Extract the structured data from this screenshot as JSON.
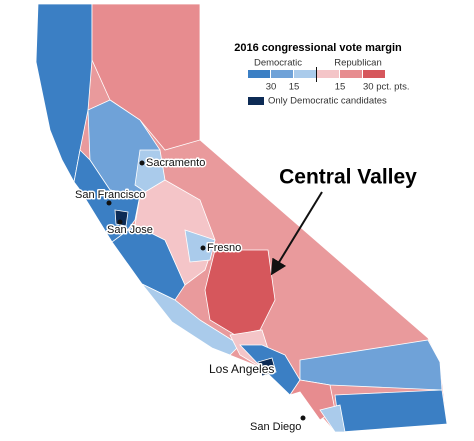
{
  "legend": {
    "title": "2016 congressional vote margin",
    "left_heading": "Democratic",
    "right_heading": "Republican",
    "swatches": [
      "#3b7fc4",
      "#6fa2d8",
      "#aacbeb",
      "#f4c5c8",
      "#e78c8f",
      "#d6575c"
    ],
    "tick_labels": [
      "30",
      "15",
      "15",
      "30 pct. pts."
    ],
    "special": {
      "color": "#0d2b55",
      "label": "Only Democratic candidates"
    }
  },
  "cities": [
    "Sacramento",
    "San Francisco",
    "San Jose",
    "Fresno",
    "Los Angeles",
    "San Diego"
  ],
  "annotation": "Central Valley"
}
